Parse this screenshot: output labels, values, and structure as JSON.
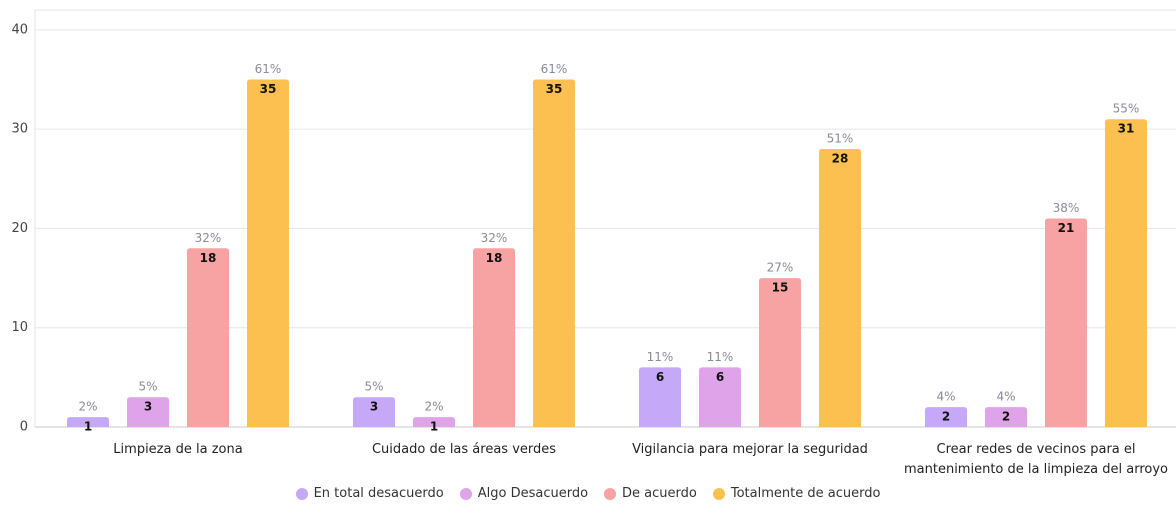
{
  "chart_data": {
    "type": "bar",
    "categories": [
      "Limpieza de la zona",
      "Cuidado de las áreas verdes",
      "Vigilancia para mejorar la seguridad",
      "Crear redes de vecinos para el mantenimiento de la limpieza del arroyo"
    ],
    "series": [
      {
        "name": "En total desacuerdo",
        "color": "#c5a8f7",
        "values": [
          1,
          3,
          6,
          2
        ],
        "percent_labels": [
          "2%",
          "5%",
          "11%",
          "4%"
        ]
      },
      {
        "name": "Algo Desacuerdo",
        "color": "#dfa3ea",
        "values": [
          3,
          1,
          6,
          2
        ],
        "percent_labels": [
          "5%",
          "2%",
          "11%",
          "4%"
        ]
      },
      {
        "name": "De acuerdo",
        "color": "#f7a3a3",
        "values": [
          18,
          18,
          15,
          21
        ],
        "percent_labels": [
          "32%",
          "32%",
          "27%",
          "38%"
        ]
      },
      {
        "name": "Totalmente de acuerdo",
        "color": "#fbc050",
        "values": [
          35,
          35,
          28,
          31
        ],
        "percent_labels": [
          "61%",
          "61%",
          "51%",
          "55%"
        ]
      }
    ],
    "ylim": [
      0,
      42
    ],
    "yticks": [
      0,
      10,
      20,
      30,
      40
    ],
    "grid": true,
    "legend": "bottom"
  }
}
